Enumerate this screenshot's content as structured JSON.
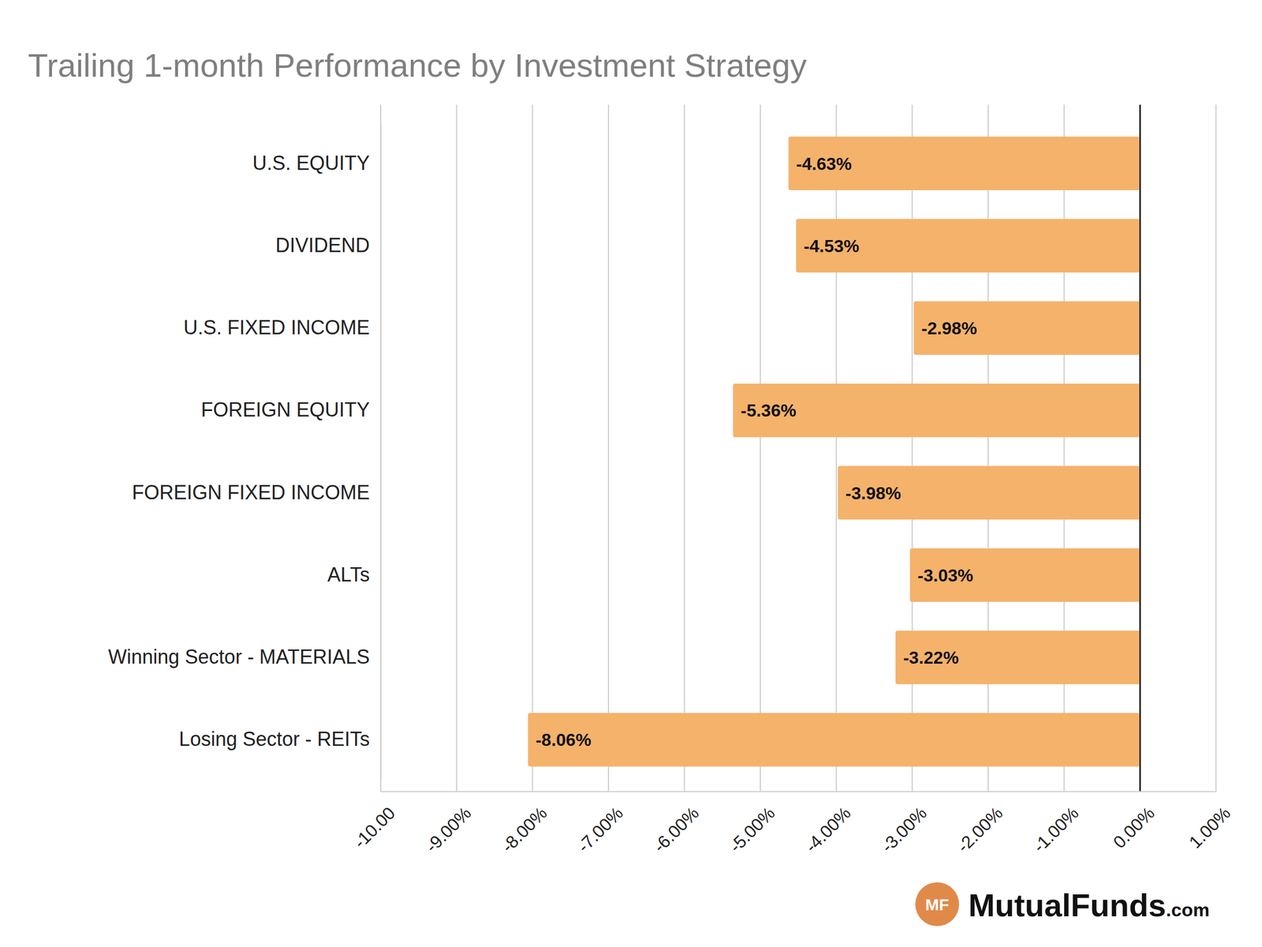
{
  "chart_data": {
    "type": "bar",
    "orientation": "horizontal",
    "title": "Trailing 1-month Performance by Investment Strategy",
    "categories": [
      "U.S. EQUITY",
      "DIVIDEND",
      "U.S. FIXED INCOME",
      "FOREIGN EQUITY",
      "FOREIGN FIXED INCOME",
      "ALTs",
      "Winning Sector - MATERIALS",
      "Losing Sector - REITs"
    ],
    "values": [
      -4.63,
      -4.53,
      -2.98,
      -5.36,
      -3.98,
      -3.03,
      -3.22,
      -8.06
    ],
    "value_labels": [
      "-4.63%",
      "-4.53%",
      "-2.98%",
      "-5.36%",
      "-3.98%",
      "-3.03%",
      "-3.22%",
      "-8.06%"
    ],
    "data_labels": true,
    "color": "#f5b26b",
    "xlim": [
      -10,
      1
    ],
    "xticks": [
      {
        "value": -10,
        "label": "-10.00"
      },
      {
        "value": -9,
        "label": "-9.00%"
      },
      {
        "value": -8,
        "label": "-8.00%"
      },
      {
        "value": -7,
        "label": "-7.00%"
      },
      {
        "value": -6,
        "label": "-6.00%"
      },
      {
        "value": -5,
        "label": "-5.00%"
      },
      {
        "value": -4,
        "label": "-4.00%"
      },
      {
        "value": -3,
        "label": "-3.00%"
      },
      {
        "value": -2,
        "label": "-2.00%"
      },
      {
        "value": -1,
        "label": "-1.00%"
      },
      {
        "value": 0,
        "label": "0.00%"
      },
      {
        "value": 1,
        "label": "1.00%"
      }
    ],
    "grid": true,
    "annotations": [
      "MF",
      "MutualFunds.com"
    ]
  }
}
